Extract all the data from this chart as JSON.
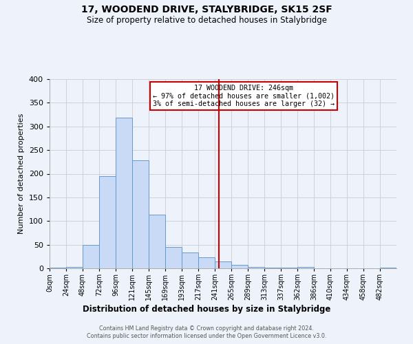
{
  "title": "17, WOODEND DRIVE, STALYBRIDGE, SK15 2SF",
  "subtitle": "Size of property relative to detached houses in Stalybridge",
  "xlabel": "Distribution of detached houses by size in Stalybridge",
  "ylabel": "Number of detached properties",
  "bin_edges": [
    0,
    24,
    48,
    72,
    96,
    120,
    144,
    168,
    192,
    216,
    240,
    264,
    288,
    312,
    336,
    360,
    384,
    408,
    432,
    456,
    480,
    504
  ],
  "bin_labels": [
    "0sqm",
    "24sqm",
    "48sqm",
    "72sqm",
    "96sqm",
    "121sqm",
    "145sqm",
    "169sqm",
    "193sqm",
    "217sqm",
    "241sqm",
    "265sqm",
    "289sqm",
    "313sqm",
    "337sqm",
    "362sqm",
    "386sqm",
    "410sqm",
    "434sqm",
    "458sqm",
    "482sqm"
  ],
  "counts": [
    2,
    3,
    50,
    195,
    318,
    228,
    114,
    45,
    34,
    24,
    15,
    7,
    3,
    2,
    1,
    3,
    0,
    0,
    0,
    0,
    1
  ],
  "bar_color": "#c8daf5",
  "bar_edge_color": "#6699cc",
  "vline_x": 246,
  "vline_color": "#cc0000",
  "annotation_text_line1": "17 WOODEND DRIVE: 246sqm",
  "annotation_text_line2": "← 97% of detached houses are smaller (1,002)",
  "annotation_text_line3": "3% of semi-detached houses are larger (32) →",
  "annotation_box_color": "#ffffff",
  "annotation_border_color": "#cc0000",
  "ylim": [
    0,
    400
  ],
  "yticks": [
    0,
    50,
    100,
    150,
    200,
    250,
    300,
    350,
    400
  ],
  "grid_color": "#cccccc",
  "bg_color": "#eef3fb",
  "plot_bg_color": "#eef3fb",
  "footer1": "Contains HM Land Registry data © Crown copyright and database right 2024.",
  "footer2": "Contains public sector information licensed under the Open Government Licence v3.0."
}
